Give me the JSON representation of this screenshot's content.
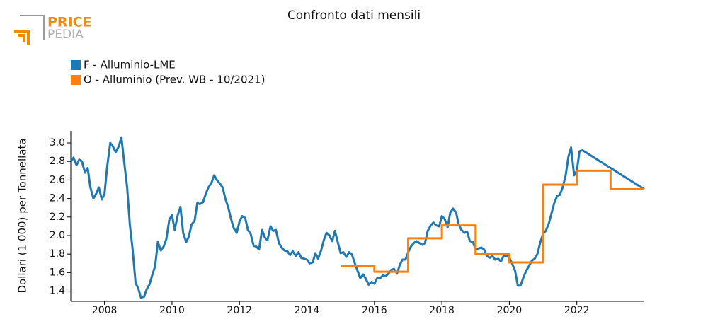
{
  "logo": {
    "top": "PRICE",
    "bottom": "PEDIA"
  },
  "chart_data": {
    "type": "line",
    "title": "Confronto dati mensili",
    "ylabel": "Dollari (1 000) per Tonnellata",
    "xlim": [
      2007,
      2024
    ],
    "ylim": [
      1.29,
      3.13
    ],
    "xticks": [
      2008,
      2010,
      2012,
      2014,
      2016,
      2018,
      2020,
      2022
    ],
    "yticks": [
      {
        "value": 1.4,
        "label": "1.4"
      },
      {
        "value": 1.6,
        "label": "1.6"
      },
      {
        "value": 1.8,
        "label": "1.8"
      },
      {
        "value": 2.0,
        "label": "2.0"
      },
      {
        "value": 2.2,
        "label": "2.2"
      },
      {
        "value": 2.4,
        "label": "2.4"
      },
      {
        "value": 2.6,
        "label": "2.6"
      },
      {
        "value": 2.8,
        "label": "2.8"
      },
      {
        "value": 3.0,
        "label": "3.0"
      }
    ],
    "grid": false,
    "legend": "top-left",
    "series": [
      {
        "name": "F - Alluminio-LME",
        "color": "#1f77b4",
        "step": false,
        "x": [
          2007,
          2007.08,
          2007.17,
          2007.25,
          2007.33,
          2007.42,
          2007.5,
          2007.58,
          2007.67,
          2007.75,
          2007.83,
          2007.92,
          2008,
          2008.08,
          2008.17,
          2008.25,
          2008.33,
          2008.42,
          2008.5,
          2008.58,
          2008.67,
          2008.75,
          2008.83,
          2008.92,
          2009,
          2009.08,
          2009.17,
          2009.25,
          2009.33,
          2009.42,
          2009.5,
          2009.58,
          2009.67,
          2009.75,
          2009.83,
          2009.92,
          2010,
          2010.08,
          2010.17,
          2010.25,
          2010.33,
          2010.42,
          2010.5,
          2010.58,
          2010.67,
          2010.75,
          2010.83,
          2010.92,
          2011,
          2011.08,
          2011.17,
          2011.25,
          2011.33,
          2011.42,
          2011.5,
          2011.58,
          2011.67,
          2011.75,
          2011.83,
          2011.92,
          2012,
          2012.08,
          2012.17,
          2012.25,
          2012.33,
          2012.42,
          2012.5,
          2012.58,
          2012.67,
          2012.75,
          2012.83,
          2012.92,
          2013,
          2013.08,
          2013.17,
          2013.25,
          2013.33,
          2013.42,
          2013.5,
          2013.58,
          2013.67,
          2013.75,
          2013.83,
          2013.92,
          2014,
          2014.08,
          2014.17,
          2014.25,
          2014.33,
          2014.42,
          2014.5,
          2014.58,
          2014.67,
          2014.75,
          2014.83,
          2014.92,
          2015,
          2015.08,
          2015.17,
          2015.25,
          2015.33,
          2015.42,
          2015.5,
          2015.58,
          2015.67,
          2015.75,
          2015.83,
          2015.92,
          2016,
          2016.08,
          2016.17,
          2016.25,
          2016.33,
          2016.42,
          2016.5,
          2016.58,
          2016.67,
          2016.75,
          2016.83,
          2016.92,
          2017,
          2017.08,
          2017.17,
          2017.25,
          2017.33,
          2017.42,
          2017.5,
          2017.58,
          2017.67,
          2017.75,
          2017.83,
          2017.92,
          2018,
          2018.08,
          2018.17,
          2018.25,
          2018.33,
          2018.42,
          2018.5,
          2018.58,
          2018.67,
          2018.75,
          2018.83,
          2018.92,
          2019,
          2019.08,
          2019.17,
          2019.25,
          2019.33,
          2019.42,
          2019.5,
          2019.58,
          2019.67,
          2019.75,
          2019.83,
          2019.92,
          2020,
          2020.08,
          2020.17,
          2020.25,
          2020.33,
          2020.42,
          2020.5,
          2020.58,
          2020.67,
          2020.75,
          2020.83,
          2020.92,
          2021,
          2021.08,
          2021.17,
          2021.25,
          2021.33,
          2021.42,
          2021.5,
          2021.58,
          2021.67,
          2021.75,
          2021.83,
          2021.92,
          2022,
          2022.08,
          2022.17,
          2024
        ],
        "values": [
          2.8,
          2.84,
          2.76,
          2.82,
          2.8,
          2.68,
          2.73,
          2.52,
          2.4,
          2.45,
          2.52,
          2.39,
          2.45,
          2.75,
          3.0,
          2.96,
          2.9,
          2.96,
          3.06,
          2.8,
          2.52,
          2.12,
          1.86,
          1.49,
          1.43,
          1.33,
          1.34,
          1.42,
          1.47,
          1.58,
          1.67,
          1.93,
          1.84,
          1.88,
          1.96,
          2.17,
          2.22,
          2.06,
          2.22,
          2.31,
          2.03,
          1.93,
          1.99,
          2.12,
          2.16,
          2.35,
          2.34,
          2.36,
          2.45,
          2.52,
          2.57,
          2.65,
          2.6,
          2.56,
          2.52,
          2.4,
          2.3,
          2.18,
          2.08,
          2.03,
          2.15,
          2.21,
          2.19,
          2.06,
          2.02,
          1.89,
          1.88,
          1.85,
          2.06,
          1.98,
          1.95,
          2.1,
          2.05,
          2.06,
          1.92,
          1.87,
          1.84,
          1.83,
          1.79,
          1.83,
          1.78,
          1.82,
          1.76,
          1.75,
          1.74,
          1.7,
          1.71,
          1.81,
          1.75,
          1.84,
          1.95,
          2.03,
          2.0,
          1.94,
          2.05,
          1.92,
          1.81,
          1.82,
          1.77,
          1.82,
          1.8,
          1.7,
          1.62,
          1.54,
          1.58,
          1.53,
          1.47,
          1.5,
          1.48,
          1.54,
          1.54,
          1.57,
          1.56,
          1.59,
          1.63,
          1.64,
          1.59,
          1.68,
          1.74,
          1.74,
          1.82,
          1.88,
          1.92,
          1.94,
          1.92,
          1.9,
          1.92,
          2.05,
          2.11,
          2.14,
          2.11,
          2.1,
          2.21,
          2.18,
          2.09,
          2.25,
          2.29,
          2.25,
          2.12,
          2.06,
          2.03,
          2.04,
          1.94,
          1.93,
          1.85,
          1.86,
          1.87,
          1.85,
          1.78,
          1.76,
          1.78,
          1.74,
          1.75,
          1.72,
          1.78,
          1.78,
          1.76,
          1.7,
          1.62,
          1.46,
          1.46,
          1.55,
          1.62,
          1.67,
          1.73,
          1.75,
          1.8,
          1.93,
          2.02,
          2.05,
          2.13,
          2.24,
          2.35,
          2.43,
          2.44,
          2.52,
          2.65,
          2.85,
          2.95,
          2.65,
          2.7,
          2.91,
          2.92,
          2.5
        ]
      },
      {
        "name": "O - Alluminio (Prev. WB - 10/2021)",
        "color": "#ff7f0e",
        "step": true,
        "x": [
          2015,
          2016,
          2017,
          2018,
          2019,
          2020,
          2021,
          2022,
          2023,
          2024
        ],
        "values": [
          1.67,
          1.61,
          1.97,
          2.11,
          1.8,
          1.71,
          2.55,
          2.7,
          2.5,
          2.5
        ]
      }
    ]
  }
}
